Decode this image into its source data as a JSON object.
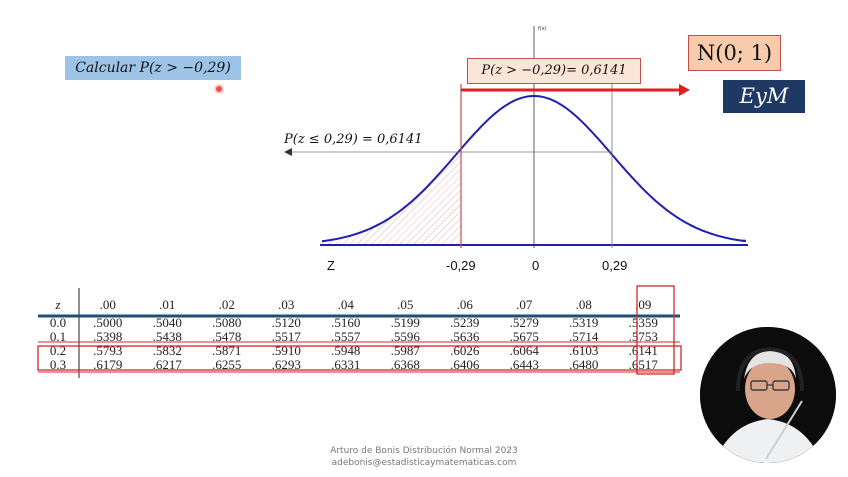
{
  "calc_label": "Calcular P(z > −0,29)",
  "distribution_label": "N(0; 1)",
  "brand_label": "EyM",
  "prob_greater_label": "P(z > −0,29)= 0,6141",
  "prob_le_label": "P(z ≤ 0,29) = 0,6141",
  "curve_axis_label": "f(x)",
  "x_axis": {
    "z_label": "Z",
    "ticks": [
      "-0,29",
      "0",
      "0,29"
    ]
  },
  "colors": {
    "curve": "#1f1fb4",
    "shade": "#c0504d",
    "arrow": "#e02020",
    "calc_box": "#9dc3e6",
    "dist_box": "#f8cbad",
    "brand_box": "#1f3864",
    "table_rule": "#1f4e79",
    "highlight": "#d02828"
  },
  "ztable": {
    "header": [
      "z",
      ".00",
      ".01",
      ".02",
      ".03",
      ".04",
      ".05",
      ".06",
      ".07",
      ".08",
      ".09"
    ],
    "rows": [
      [
        "0.0",
        ".5000",
        ".5040",
        ".5080",
        ".5120",
        ".5160",
        ".5199",
        ".5239",
        ".5279",
        ".5319",
        ".5359"
      ],
      [
        "0.1",
        ".5398",
        ".5438",
        ".5478",
        ".5517",
        ".5557",
        ".5596",
        ".5636",
        ".5675",
        ".5714",
        ".5753"
      ],
      [
        "0.2",
        ".5793",
        ".5832",
        ".5871",
        ".5910",
        ".5948",
        ".5987",
        ".6026",
        ".6064",
        ".6103",
        ".6141"
      ],
      [
        "0.3",
        ".6179",
        ".6217",
        ".6255",
        ".6293",
        ".6331",
        ".6368",
        ".6406",
        ".6443",
        ".6480",
        ".6517"
      ]
    ]
  },
  "footer": {
    "line1": "Arturo de Bonis Distribución Normal 2023",
    "line2": "adebonis@estadisticaymatematicas.com"
  }
}
